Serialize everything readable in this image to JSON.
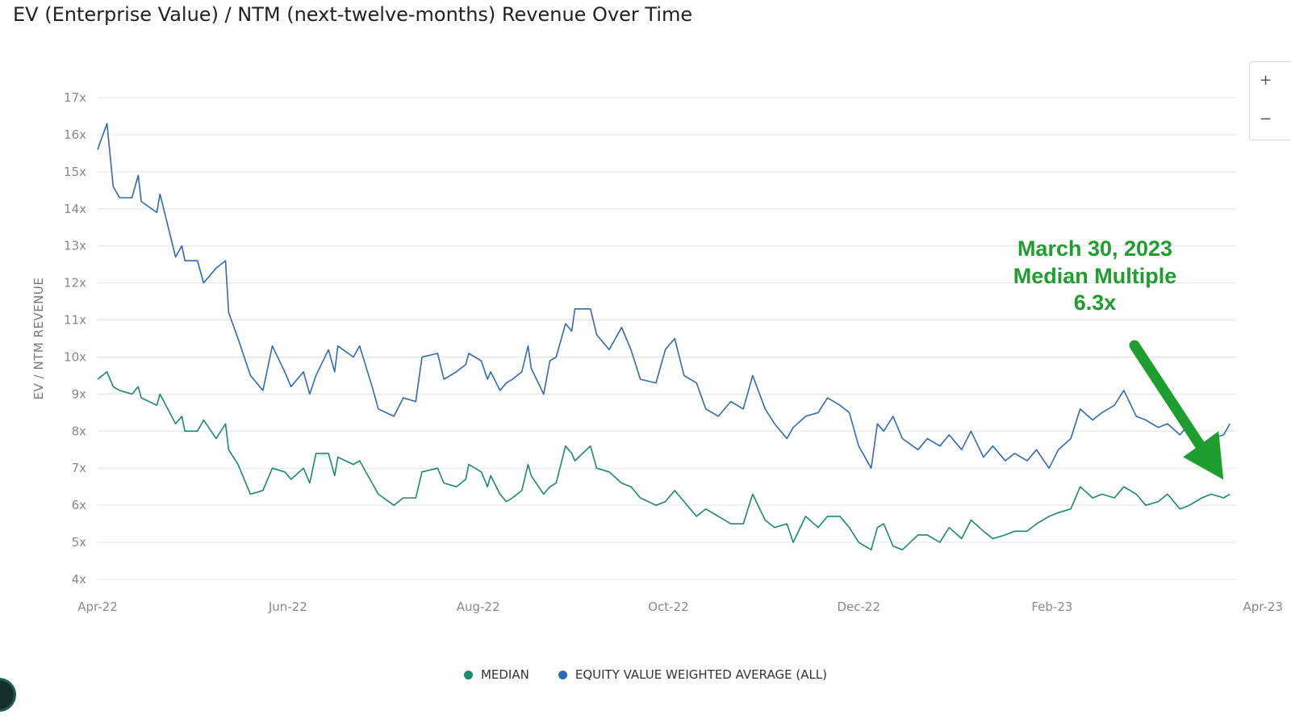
{
  "page": {
    "title": "EV (Enterprise Value) / NTM (next-twelve-months) Revenue Over Time"
  },
  "zoom": {
    "in_label": "+",
    "out_label": "−"
  },
  "annotation": {
    "lines": [
      "March 30, 2023",
      "Median Multiple",
      "6.3x"
    ],
    "color": "#1e9e2f"
  },
  "chart_data": {
    "type": "line",
    "title": "EV (Enterprise Value) / NTM (next-twelve-months) Revenue Over Time",
    "xlabel": "",
    "ylabel": "EV / NTM REVENUE",
    "ylim": [
      4,
      17
    ],
    "xlim": [
      "2022-04-01",
      "2023-04-01"
    ],
    "y_ticks": [
      4,
      5,
      6,
      7,
      8,
      9,
      10,
      11,
      12,
      13,
      14,
      15,
      16,
      17
    ],
    "y_tick_labels": [
      "4x",
      "5x",
      "6x",
      "7x",
      "8x",
      "9x",
      "10x",
      "11x",
      "12x",
      "13x",
      "14x",
      "15x",
      "16x",
      "17x"
    ],
    "x_ticks": [
      "2022-04-01",
      "2022-06-01",
      "2022-08-01",
      "2022-10-01",
      "2022-12-01",
      "2023-02-01",
      "2023-04-01"
    ],
    "x_tick_labels": [
      "Apr-22",
      "Jun-22",
      "Aug-22",
      "Oct-22",
      "Dec-22",
      "Feb-23",
      "Apr-23"
    ],
    "grid": true,
    "legend_position": "bottom-center",
    "series": [
      {
        "name": "MEDIAN",
        "color": "#1a8a6a",
        "points": [
          [
            "2022-04-01",
            9.4
          ],
          [
            "2022-04-04",
            9.6
          ],
          [
            "2022-04-06",
            9.2
          ],
          [
            "2022-04-08",
            9.1
          ],
          [
            "2022-04-12",
            9.0
          ],
          [
            "2022-04-14",
            9.2
          ],
          [
            "2022-04-15",
            8.9
          ],
          [
            "2022-04-20",
            8.7
          ],
          [
            "2022-04-21",
            9.0
          ],
          [
            "2022-04-26",
            8.2
          ],
          [
            "2022-04-28",
            8.4
          ],
          [
            "2022-04-29",
            8.0
          ],
          [
            "2022-05-03",
            8.0
          ],
          [
            "2022-05-05",
            8.3
          ],
          [
            "2022-05-09",
            7.8
          ],
          [
            "2022-05-12",
            8.2
          ],
          [
            "2022-05-13",
            7.5
          ],
          [
            "2022-05-16",
            7.1
          ],
          [
            "2022-05-20",
            6.3
          ],
          [
            "2022-05-24",
            6.4
          ],
          [
            "2022-05-27",
            7.0
          ],
          [
            "2022-05-31",
            6.9
          ],
          [
            "2022-06-02",
            6.7
          ],
          [
            "2022-06-06",
            7.0
          ],
          [
            "2022-06-08",
            6.6
          ],
          [
            "2022-06-10",
            7.4
          ],
          [
            "2022-06-14",
            7.4
          ],
          [
            "2022-06-16",
            6.8
          ],
          [
            "2022-06-17",
            7.3
          ],
          [
            "2022-06-22",
            7.1
          ],
          [
            "2022-06-24",
            7.2
          ],
          [
            "2022-06-28",
            6.6
          ],
          [
            "2022-06-30",
            6.3
          ],
          [
            "2022-07-05",
            6.0
          ],
          [
            "2022-07-08",
            6.2
          ],
          [
            "2022-07-12",
            6.2
          ],
          [
            "2022-07-14",
            6.9
          ],
          [
            "2022-07-19",
            7.0
          ],
          [
            "2022-07-21",
            6.6
          ],
          [
            "2022-07-25",
            6.5
          ],
          [
            "2022-07-28",
            6.7
          ],
          [
            "2022-07-29",
            7.1
          ],
          [
            "2022-08-02",
            6.9
          ],
          [
            "2022-08-04",
            6.5
          ],
          [
            "2022-08-05",
            6.8
          ],
          [
            "2022-08-08",
            6.3
          ],
          [
            "2022-08-10",
            6.1
          ],
          [
            "2022-08-12",
            6.2
          ],
          [
            "2022-08-15",
            6.4
          ],
          [
            "2022-08-17",
            7.1
          ],
          [
            "2022-08-18",
            6.8
          ],
          [
            "2022-08-22",
            6.3
          ],
          [
            "2022-08-24",
            6.5
          ],
          [
            "2022-08-26",
            6.6
          ],
          [
            "2022-08-29",
            7.6
          ],
          [
            "2022-08-31",
            7.4
          ],
          [
            "2022-09-01",
            7.2
          ],
          [
            "2022-09-06",
            7.6
          ],
          [
            "2022-09-08",
            7.0
          ],
          [
            "2022-09-12",
            6.9
          ],
          [
            "2022-09-16",
            6.6
          ],
          [
            "2022-09-19",
            6.5
          ],
          [
            "2022-09-22",
            6.2
          ],
          [
            "2022-09-27",
            6.0
          ],
          [
            "2022-09-30",
            6.1
          ],
          [
            "2022-10-03",
            6.4
          ],
          [
            "2022-10-06",
            6.1
          ],
          [
            "2022-10-10",
            5.7
          ],
          [
            "2022-10-13",
            5.9
          ],
          [
            "2022-10-17",
            5.7
          ],
          [
            "2022-10-21",
            5.5
          ],
          [
            "2022-10-25",
            5.5
          ],
          [
            "2022-10-28",
            6.3
          ],
          [
            "2022-11-01",
            5.6
          ],
          [
            "2022-11-04",
            5.4
          ],
          [
            "2022-11-08",
            5.5
          ],
          [
            "2022-11-10",
            5.0
          ],
          [
            "2022-11-14",
            5.7
          ],
          [
            "2022-11-18",
            5.4
          ],
          [
            "2022-11-21",
            5.7
          ],
          [
            "2022-11-25",
            5.7
          ],
          [
            "2022-11-28",
            5.4
          ],
          [
            "2022-12-01",
            5.0
          ],
          [
            "2022-12-05",
            4.8
          ],
          [
            "2022-12-07",
            5.4
          ],
          [
            "2022-12-09",
            5.5
          ],
          [
            "2022-12-12",
            4.9
          ],
          [
            "2022-12-15",
            4.8
          ],
          [
            "2022-12-20",
            5.2
          ],
          [
            "2022-12-23",
            5.2
          ],
          [
            "2022-12-27",
            5.0
          ],
          [
            "2022-12-30",
            5.4
          ],
          [
            "2023-01-03",
            5.1
          ],
          [
            "2023-01-06",
            5.6
          ],
          [
            "2023-01-10",
            5.3
          ],
          [
            "2023-01-13",
            5.1
          ],
          [
            "2023-01-17",
            5.2
          ],
          [
            "2023-01-20",
            5.3
          ],
          [
            "2023-01-24",
            5.3
          ],
          [
            "2023-01-27",
            5.5
          ],
          [
            "2023-01-31",
            5.7
          ],
          [
            "2023-02-03",
            5.8
          ],
          [
            "2023-02-07",
            5.9
          ],
          [
            "2023-02-10",
            6.5
          ],
          [
            "2023-02-14",
            6.2
          ],
          [
            "2023-02-17",
            6.3
          ],
          [
            "2023-02-21",
            6.2
          ],
          [
            "2023-02-24",
            6.5
          ],
          [
            "2023-02-28",
            6.3
          ],
          [
            "2023-03-03",
            6.0
          ],
          [
            "2023-03-07",
            6.1
          ],
          [
            "2023-03-10",
            6.3
          ],
          [
            "2023-03-14",
            5.9
          ],
          [
            "2023-03-17",
            6.0
          ],
          [
            "2023-03-21",
            6.2
          ],
          [
            "2023-03-24",
            6.3
          ],
          [
            "2023-03-28",
            6.2
          ],
          [
            "2023-03-30",
            6.3
          ]
        ]
      },
      {
        "name": "EQUITY VALUE WEIGHTED AVERAGE (ALL)",
        "color": "#2e6bb5",
        "points": [
          [
            "2022-04-01",
            15.6
          ],
          [
            "2022-04-04",
            16.3
          ],
          [
            "2022-04-06",
            14.6
          ],
          [
            "2022-04-08",
            14.3
          ],
          [
            "2022-04-12",
            14.3
          ],
          [
            "2022-04-14",
            14.9
          ],
          [
            "2022-04-15",
            14.2
          ],
          [
            "2022-04-20",
            13.9
          ],
          [
            "2022-04-21",
            14.4
          ],
          [
            "2022-04-26",
            12.7
          ],
          [
            "2022-04-28",
            13.0
          ],
          [
            "2022-04-29",
            12.6
          ],
          [
            "2022-05-03",
            12.6
          ],
          [
            "2022-05-05",
            12.0
          ],
          [
            "2022-05-09",
            12.4
          ],
          [
            "2022-05-12",
            12.6
          ],
          [
            "2022-05-13",
            11.2
          ],
          [
            "2022-05-16",
            10.5
          ],
          [
            "2022-05-20",
            9.5
          ],
          [
            "2022-05-24",
            9.1
          ],
          [
            "2022-05-27",
            10.3
          ],
          [
            "2022-05-31",
            9.6
          ],
          [
            "2022-06-02",
            9.2
          ],
          [
            "2022-06-06",
            9.6
          ],
          [
            "2022-06-08",
            9.0
          ],
          [
            "2022-06-10",
            9.5
          ],
          [
            "2022-06-14",
            10.2
          ],
          [
            "2022-06-16",
            9.6
          ],
          [
            "2022-06-17",
            10.3
          ],
          [
            "2022-06-22",
            10.0
          ],
          [
            "2022-06-24",
            10.3
          ],
          [
            "2022-06-28",
            9.2
          ],
          [
            "2022-06-30",
            8.6
          ],
          [
            "2022-07-05",
            8.4
          ],
          [
            "2022-07-08",
            8.9
          ],
          [
            "2022-07-12",
            8.8
          ],
          [
            "2022-07-14",
            10.0
          ],
          [
            "2022-07-19",
            10.1
          ],
          [
            "2022-07-21",
            9.4
          ],
          [
            "2022-07-25",
            9.6
          ],
          [
            "2022-07-28",
            9.8
          ],
          [
            "2022-07-29",
            10.1
          ],
          [
            "2022-08-02",
            9.9
          ],
          [
            "2022-08-04",
            9.4
          ],
          [
            "2022-08-05",
            9.6
          ],
          [
            "2022-08-08",
            9.1
          ],
          [
            "2022-08-10",
            9.3
          ],
          [
            "2022-08-12",
            9.4
          ],
          [
            "2022-08-15",
            9.6
          ],
          [
            "2022-08-17",
            10.3
          ],
          [
            "2022-08-18",
            9.7
          ],
          [
            "2022-08-22",
            9.0
          ],
          [
            "2022-08-24",
            9.9
          ],
          [
            "2022-08-26",
            10.0
          ],
          [
            "2022-08-29",
            10.9
          ],
          [
            "2022-08-31",
            10.7
          ],
          [
            "2022-09-01",
            11.3
          ],
          [
            "2022-09-06",
            11.3
          ],
          [
            "2022-09-08",
            10.6
          ],
          [
            "2022-09-12",
            10.2
          ],
          [
            "2022-09-16",
            10.8
          ],
          [
            "2022-09-19",
            10.2
          ],
          [
            "2022-09-22",
            9.4
          ],
          [
            "2022-09-27",
            9.3
          ],
          [
            "2022-09-30",
            10.2
          ],
          [
            "2022-10-03",
            10.5
          ],
          [
            "2022-10-06",
            9.5
          ],
          [
            "2022-10-10",
            9.3
          ],
          [
            "2022-10-13",
            8.6
          ],
          [
            "2022-10-17",
            8.4
          ],
          [
            "2022-10-21",
            8.8
          ],
          [
            "2022-10-25",
            8.6
          ],
          [
            "2022-10-28",
            9.5
          ],
          [
            "2022-11-01",
            8.6
          ],
          [
            "2022-11-04",
            8.2
          ],
          [
            "2022-11-08",
            7.8
          ],
          [
            "2022-11-10",
            8.1
          ],
          [
            "2022-11-14",
            8.4
          ],
          [
            "2022-11-18",
            8.5
          ],
          [
            "2022-11-21",
            8.9
          ],
          [
            "2022-11-25",
            8.7
          ],
          [
            "2022-11-28",
            8.5
          ],
          [
            "2022-12-01",
            7.6
          ],
          [
            "2022-12-05",
            7.0
          ],
          [
            "2022-12-07",
            8.2
          ],
          [
            "2022-12-09",
            8.0
          ],
          [
            "2022-12-12",
            8.4
          ],
          [
            "2022-12-15",
            7.8
          ],
          [
            "2022-12-20",
            7.5
          ],
          [
            "2022-12-23",
            7.8
          ],
          [
            "2022-12-27",
            7.6
          ],
          [
            "2022-12-30",
            7.9
          ],
          [
            "2023-01-03",
            7.5
          ],
          [
            "2023-01-06",
            8.0
          ],
          [
            "2023-01-10",
            7.3
          ],
          [
            "2023-01-13",
            7.6
          ],
          [
            "2023-01-17",
            7.2
          ],
          [
            "2023-01-20",
            7.4
          ],
          [
            "2023-01-24",
            7.2
          ],
          [
            "2023-01-27",
            7.5
          ],
          [
            "2023-01-31",
            7.0
          ],
          [
            "2023-02-03",
            7.5
          ],
          [
            "2023-02-07",
            7.8
          ],
          [
            "2023-02-10",
            8.6
          ],
          [
            "2023-02-14",
            8.3
          ],
          [
            "2023-02-17",
            8.5
          ],
          [
            "2023-02-21",
            8.7
          ],
          [
            "2023-02-24",
            9.1
          ],
          [
            "2023-02-28",
            8.4
          ],
          [
            "2023-03-03",
            8.3
          ],
          [
            "2023-03-07",
            8.1
          ],
          [
            "2023-03-10",
            8.2
          ],
          [
            "2023-03-14",
            7.9
          ],
          [
            "2023-03-17",
            8.2
          ],
          [
            "2023-03-21",
            7.6
          ],
          [
            "2023-03-24",
            7.8
          ],
          [
            "2023-03-28",
            7.9
          ],
          [
            "2023-03-30",
            8.2
          ]
        ]
      }
    ]
  }
}
